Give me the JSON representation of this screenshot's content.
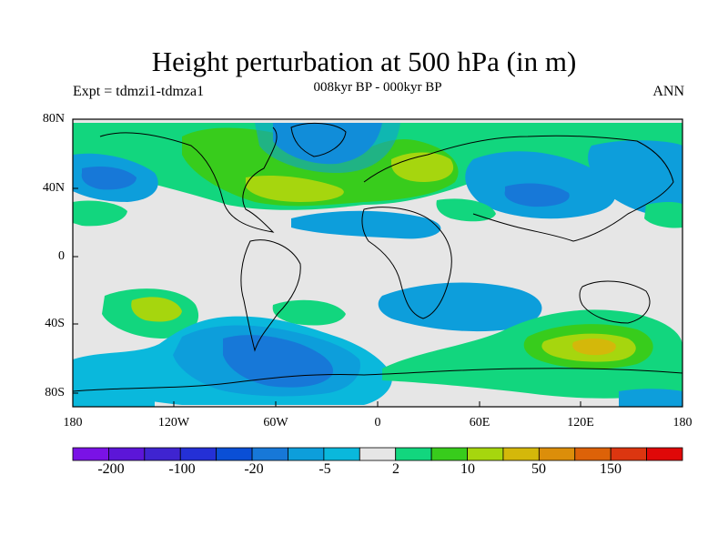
{
  "title": "Height perturbation at 500 hPa (in m)",
  "subtitle_left": "Expt = tdmzi1-tdmza1",
  "subtitle_center": "008kyr BP - 000kyr BP",
  "subtitle_right": "ANN",
  "lat_ticks": [
    "80N",
    "40N",
    "0",
    "40S",
    "80S"
  ],
  "lon_ticks": [
    "180",
    "120W",
    "60W",
    "0",
    "60E",
    "120E",
    "180"
  ],
  "colorbar": {
    "colors": [
      "#7a12e6",
      "#5c16d8",
      "#3f24d0",
      "#2430d6",
      "#0a4fd6",
      "#1778d8",
      "#0d9edb",
      "#0ab8dc",
      "#e6e6e6",
      "#12d67e",
      "#38cc1c",
      "#a6d60e",
      "#d4b80a",
      "#dc8e0a",
      "#dd6208",
      "#dc3610",
      "#e00808"
    ],
    "labels": [
      "-200",
      "-100",
      "-20",
      "-5",
      "2",
      "10",
      "50",
      "150"
    ]
  },
  "colors": {
    "background_field": "#e6e6e6",
    "light_blue": "#0ab8dc",
    "mid_blue": "#0d9edb",
    "blue": "#1778d8",
    "dark_blue": "#0a4fd6",
    "green": "#12d67e",
    "bright_green": "#38cc1c",
    "yellow_green": "#a6d60e",
    "gold": "#d4b80a"
  }
}
